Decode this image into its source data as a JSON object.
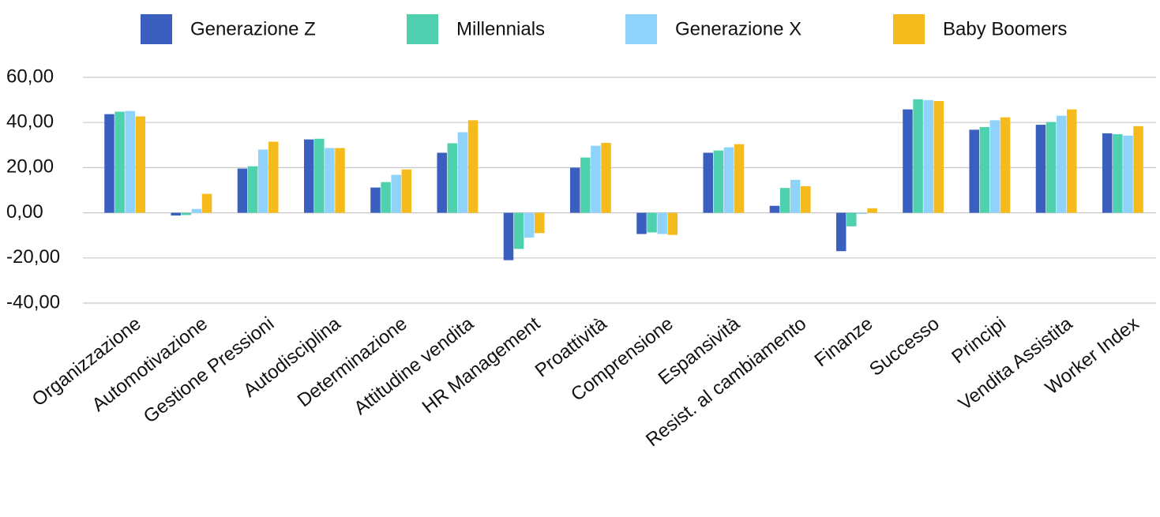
{
  "chart_data": {
    "type": "bar",
    "categories": [
      "Organizzazione",
      "Automotivazione",
      "Gestione Pressioni",
      "Autodisciplina",
      "Determinazione",
      "Attitudine vendita",
      "HR Management",
      "Proattività",
      "Comprensione",
      "Espansività",
      "Resist. al cambiamento",
      "Finanze",
      "Successo",
      "Principi",
      "Vendita Assistita",
      "Worker Index"
    ],
    "series": [
      {
        "name": "Generazione Z",
        "color": "#3a5fbf",
        "values": [
          43.7,
          -1.2,
          19.6,
          32.5,
          11.2,
          26.6,
          -21,
          20,
          -9.4,
          26.6,
          3.1,
          -17,
          45.8,
          36.8,
          39,
          35.2
        ]
      },
      {
        "name": "Millennials",
        "color": "#4fd1b0",
        "values": [
          44.8,
          -1,
          20.6,
          32.8,
          13.6,
          30.8,
          -16,
          24.5,
          -8.7,
          27.6,
          11,
          -6,
          50.3,
          38,
          40.2,
          34.8
        ]
      },
      {
        "name": "Generazione X",
        "color": "#8fd3fb",
        "values": [
          45.1,
          1.7,
          28,
          28.7,
          16.8,
          35.7,
          -11,
          29.7,
          -9.4,
          29,
          14.6,
          -0.5,
          49.9,
          41,
          43,
          34.2
        ]
      },
      {
        "name": "Baby Boomers",
        "color": "#f5bb1c",
        "values": [
          42.7,
          8.4,
          31.5,
          28.7,
          19.2,
          41,
          -9,
          31,
          -9.8,
          30.4,
          11.8,
          2,
          49.5,
          42.3,
          45.8,
          38.4
        ]
      }
    ],
    "ylim": [
      -40,
      60
    ],
    "yticks": [
      {
        "value": -40,
        "label": "-40,00"
      },
      {
        "value": -20,
        "label": "-20,00"
      },
      {
        "value": 0,
        "label": "0,00"
      },
      {
        "value": 20,
        "label": "20,00"
      },
      {
        "value": 40,
        "label": "40,00"
      },
      {
        "value": 60,
        "label": "60,00"
      }
    ],
    "grid": true,
    "legend": "top"
  }
}
